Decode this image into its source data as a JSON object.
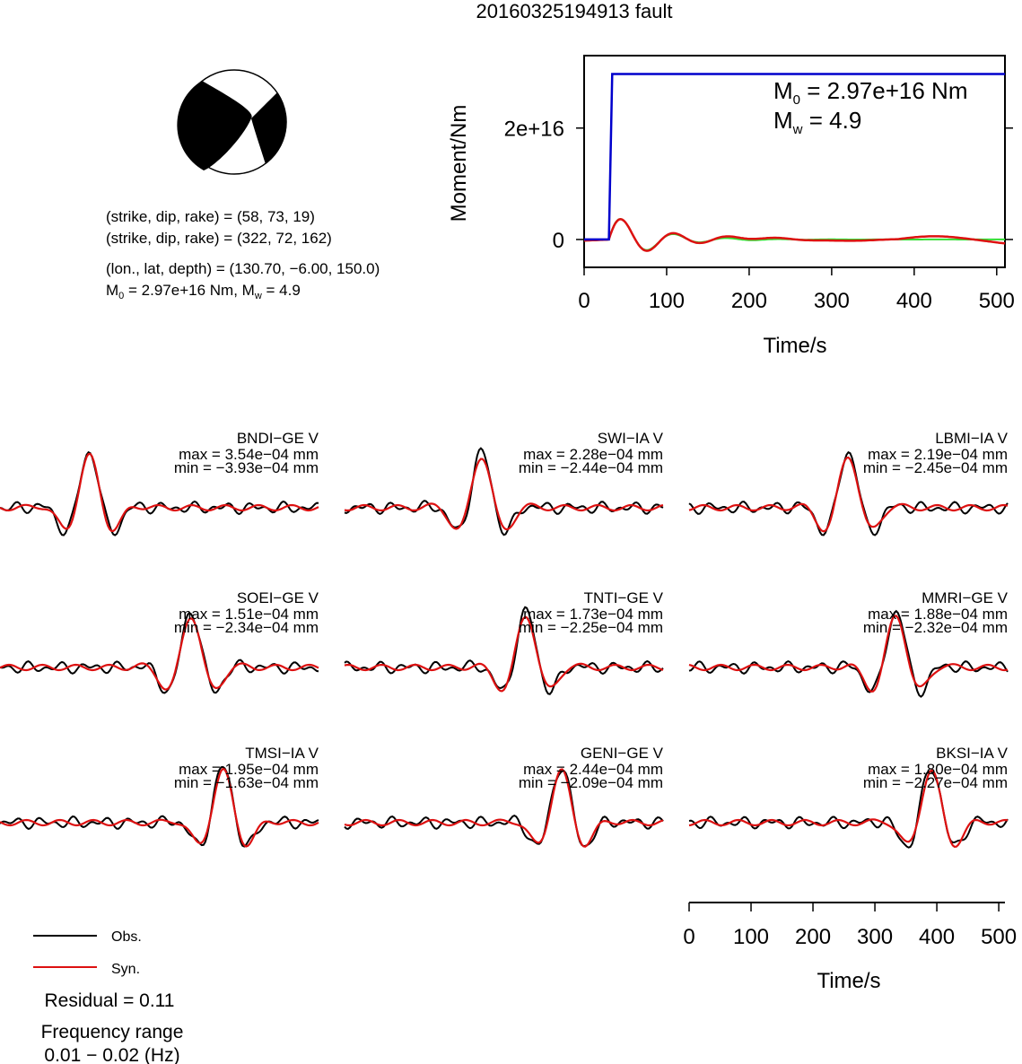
{
  "title": "20160325194913 fault",
  "info": {
    "np1": "(strike, dip, rake) = (58, 73, 19)",
    "np2": "(strike, dip, rake) = (322, 72, 162)",
    "location": "(lon., lat, depth) = (130.70, −6.00, 150.0)",
    "m0_prefix": "M",
    "m0_sub": "0",
    "m0_value": " = 2.97e+16 Nm, M",
    "mw_sub": "w",
    "mw_value": " = 4.9"
  },
  "moment_panel": {
    "ylabel": "Moment/Nm",
    "xlabel": "Time/s",
    "m0_prefix": "M",
    "m0_sub": "0",
    "m0_value": " = 2.97e+16 Nm",
    "mw_prefix": "M",
    "mw_sub": "w",
    "mw_value": " = 4.9",
    "xticks": [
      "0",
      "100",
      "200",
      "300",
      "400",
      "500"
    ],
    "yticks": [
      "0",
      "2e+16"
    ],
    "colors": {
      "cumulative": "#0000cc",
      "rate_obs": "#dd1111",
      "rate_fit": "#33dd33"
    }
  },
  "stations": [
    {
      "label": "BNDI−GE V",
      "max": "max = 3.54e−04 mm",
      "min": "min = −3.93e−04 mm"
    },
    {
      "label": "SWI−IA V",
      "max": "max = 2.28e−04 mm",
      "min": "min = −2.44e−04 mm"
    },
    {
      "label": "LBMI−IA V",
      "max": "max = 2.19e−04 mm",
      "min": "min = −2.45e−04 mm"
    },
    {
      "label": "SOEI−GE V",
      "max": "max = 1.51e−04 mm",
      "min": "min = −2.34e−04 mm"
    },
    {
      "label": "TNTI−GE V",
      "max": "max = 1.73e−04 mm",
      "min": "min = −2.25e−04 mm"
    },
    {
      "label": "MMRI−GE V",
      "max": "max = 1.88e−04 mm",
      "min": "min = −2.32e−04 mm"
    },
    {
      "label": "TMSI−IA V",
      "max": "max = 1.95e−04 mm",
      "min": "min = −1.63e−04 mm"
    },
    {
      "label": "GENI−GE V",
      "max": "max = 2.44e−04 mm",
      "min": "min = −2.09e−04 mm"
    },
    {
      "label": "BKSI−IA V",
      "max": "max = 1.80e−04 mm",
      "min": "min = −2.27e−04 mm"
    }
  ],
  "waveform_axis": {
    "xlabel": "Time/s",
    "xticks": [
      "0",
      "100",
      "200",
      "300",
      "400",
      "500"
    ]
  },
  "legend": {
    "obs": "Obs.",
    "syn": "Syn.",
    "obs_color": "#000000",
    "syn_color": "#dd1111"
  },
  "residual": "Residual = 0.11",
  "freq_title": "Frequency range",
  "freq_value": "0.01 − 0.02 (Hz)",
  "chart_data": {
    "type": "line",
    "title": "20160325194913 fault",
    "moment_function": {
      "xlabel": "Time/s",
      "ylabel": "Moment/Nm",
      "xlim": [
        0,
        510
      ],
      "ylim": [
        -5000000000000000.0,
        3.3e+16
      ],
      "cumulative_moment": {
        "x": [
          0,
          30,
          34,
          510
        ],
        "y": [
          0,
          0,
          2.97e+16,
          2.97e+16
        ]
      },
      "moment_rate_peaks": [
        {
          "t": 50,
          "v": 3300000000000000.0
        },
        {
          "t": 82,
          "v": -4600000000000000.0
        },
        {
          "t": 115,
          "v": 3300000000000000.0
        }
      ]
    },
    "waveforms": {
      "xlabel": "Time/s",
      "xlim": [
        0,
        510
      ],
      "series": [
        "Obs.",
        "Syn."
      ]
    },
    "residual": 0.11,
    "frequency_range_hz": [
      0.01,
      0.02
    ]
  }
}
